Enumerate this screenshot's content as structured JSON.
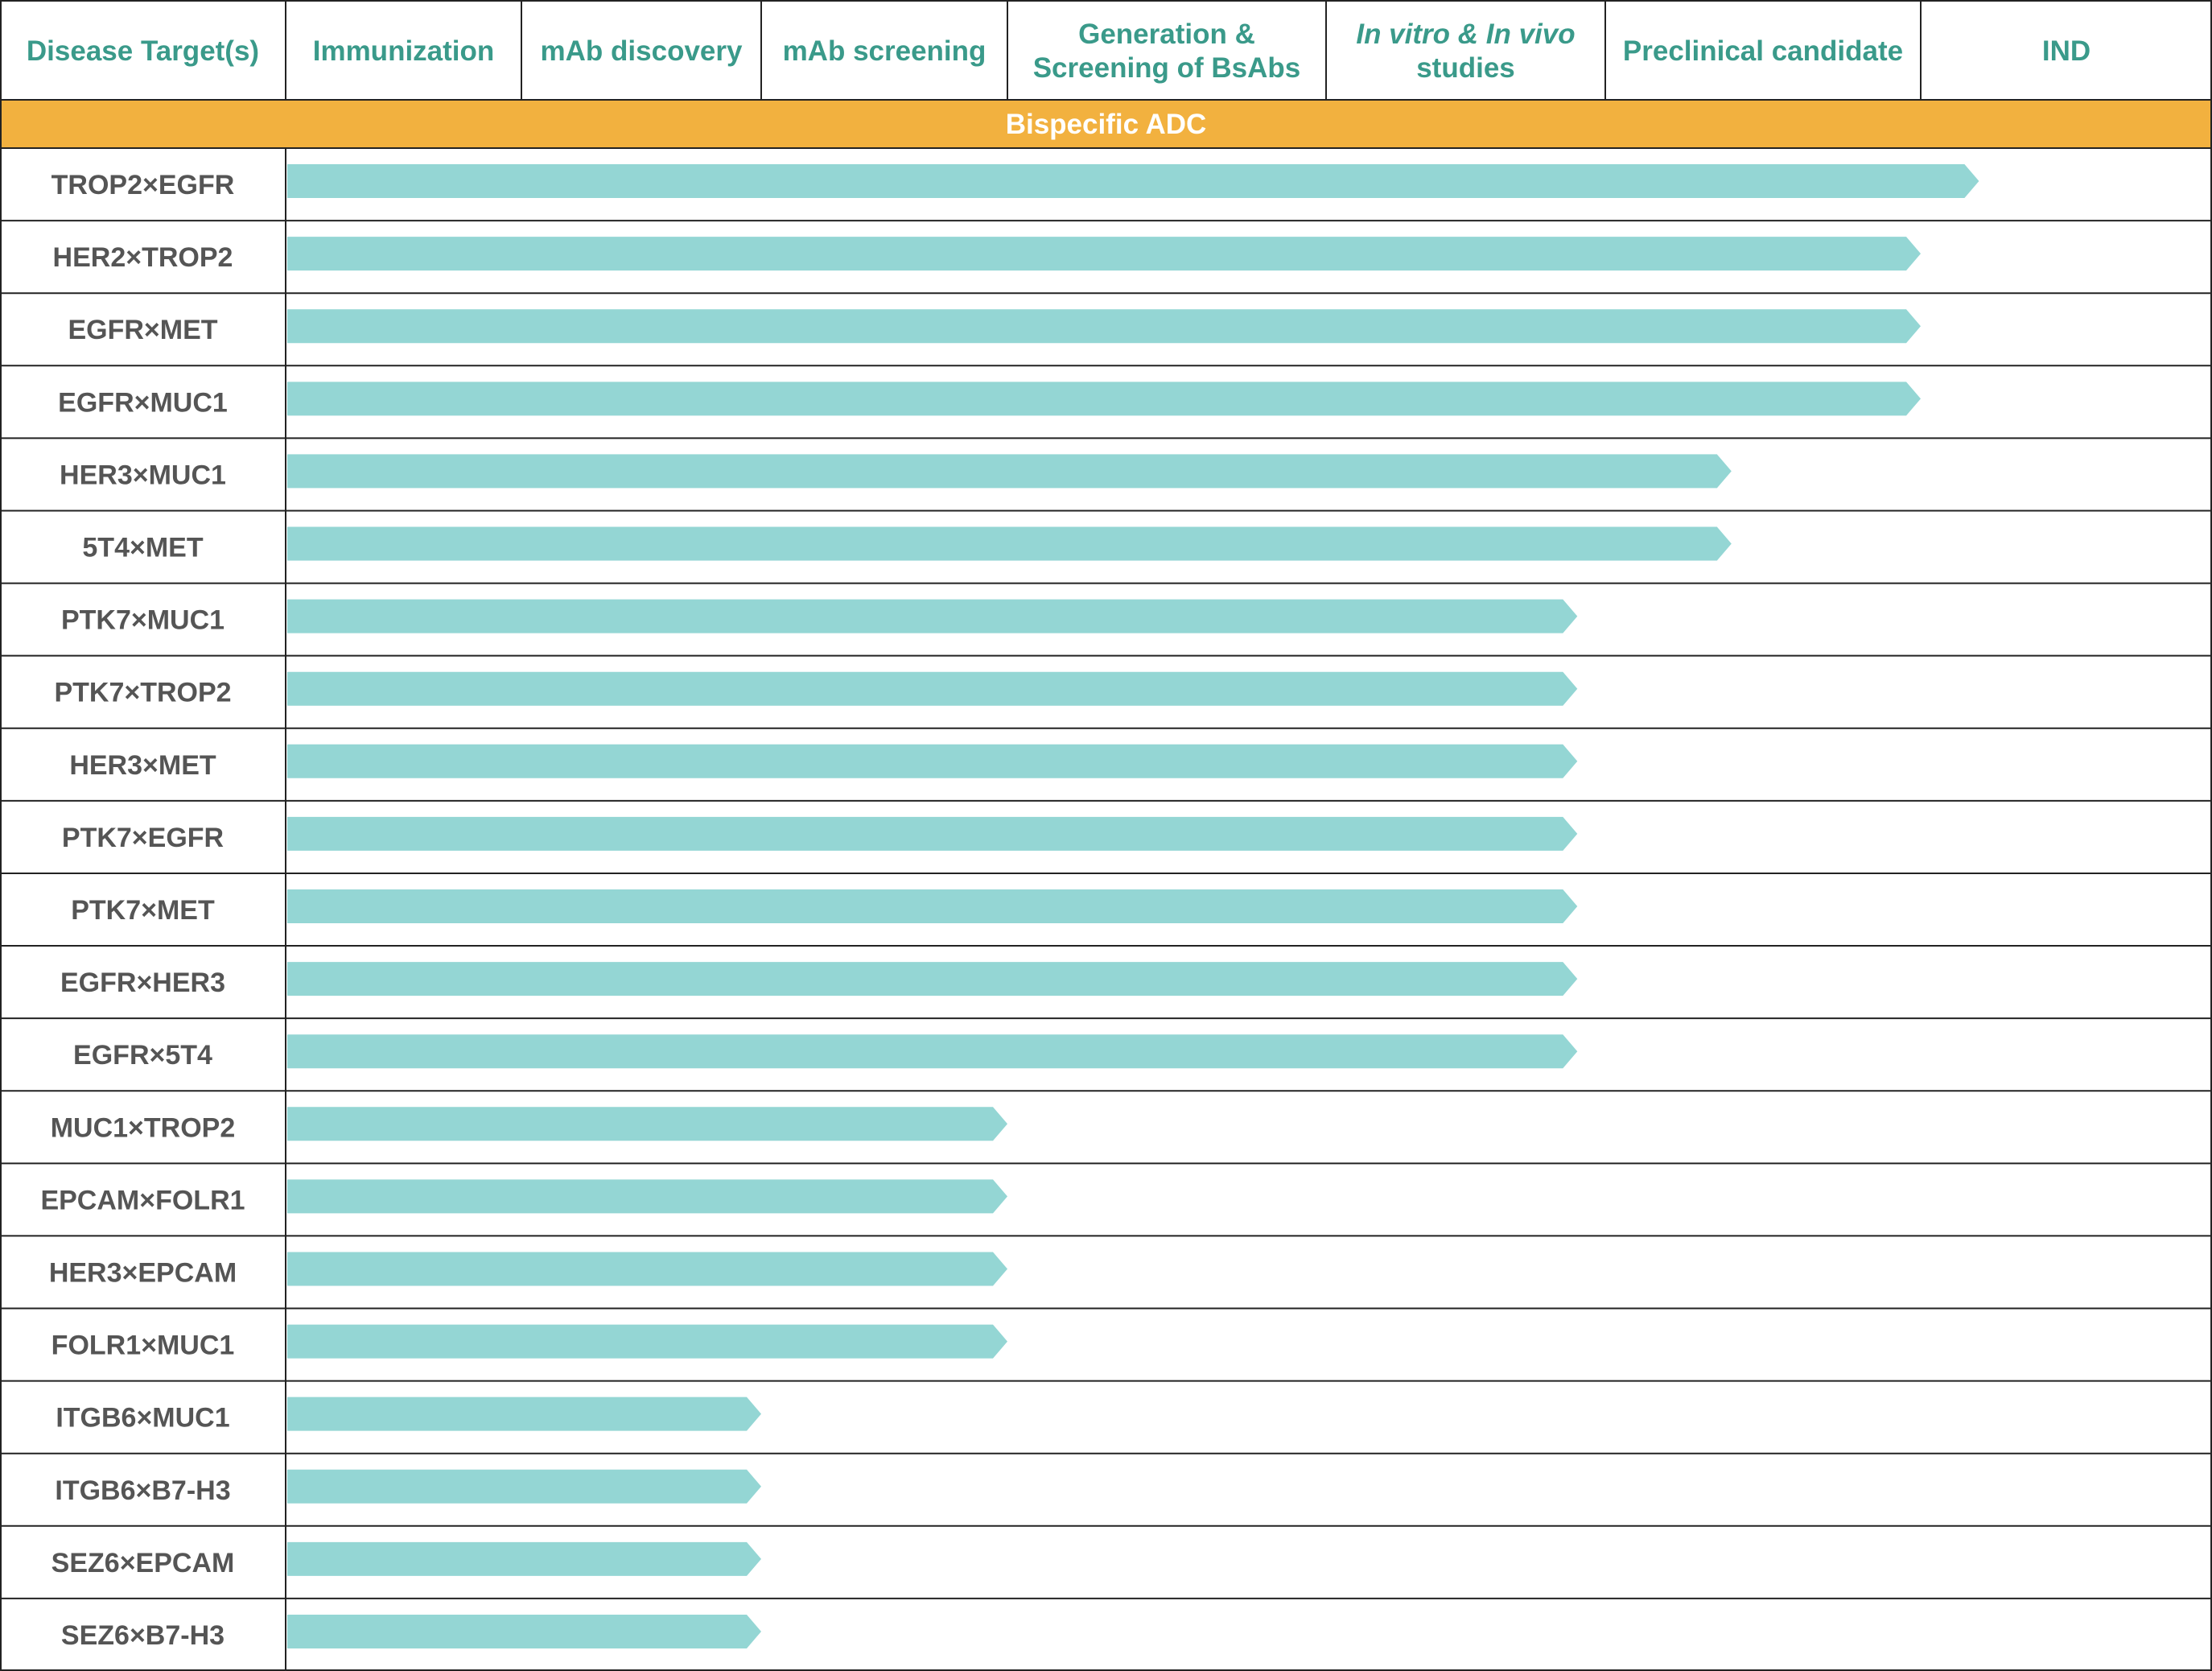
{
  "chart_data": {
    "type": "bar",
    "title": "",
    "stages": [
      {
        "line1": "Disease Target(s)",
        "line2": ""
      },
      {
        "line1": "Immunization",
        "line2": ""
      },
      {
        "line1": "mAb discovery",
        "line2": ""
      },
      {
        "line1": "mAb screening",
        "line2": ""
      },
      {
        "line1": "Generation &",
        "line2": "Screening of BsAbs"
      },
      {
        "line1": "In vitro & In vivo",
        "line2": "studies"
      },
      {
        "line1": "Preclinical candidate",
        "line2": ""
      },
      {
        "line1": "IND",
        "line2": ""
      }
    ],
    "section_label": "Bispecific ADC",
    "categories": [
      "TROP2×EGFR",
      "HER2×TROP2",
      "EGFR×MET",
      "EGFR×MUC1",
      "HER3×MUC1",
      "5T4×MET",
      "PTK7×MUC1",
      "PTK7×TROP2",
      "HER3×MET",
      "PTK7×EGFR",
      "PTK7×MET",
      "EGFR×HER3",
      "EGFR×5T4",
      "MUC1×TROP2",
      "EPCAM×FOLR1",
      "HER3×EPCAM",
      "FOLR1×MUC1",
      "ITGB6×MUC1",
      "ITGB6×B7-H3",
      "SEZ6×EPCAM",
      "SEZ6×B7-H3"
    ],
    "values": [
      6.2,
      6.0,
      6.0,
      6.0,
      5.4,
      5.4,
      4.9,
      4.9,
      4.9,
      4.9,
      4.9,
      4.9,
      4.9,
      3.0,
      3.0,
      3.0,
      3.0,
      2.0,
      2.0,
      2.0,
      2.0
    ],
    "value_meaning": "progress measured in pipeline stage columns completed (0 = start of Immunization, 7 = end of IND)",
    "xlim": [
      0,
      7
    ],
    "colors": {
      "header_text": "#3a9a8a",
      "row_text": "#555555",
      "band": "#f2b13f",
      "band_text": "#ffffff",
      "bar": "#94d6d4",
      "grid": "#222222"
    }
  }
}
